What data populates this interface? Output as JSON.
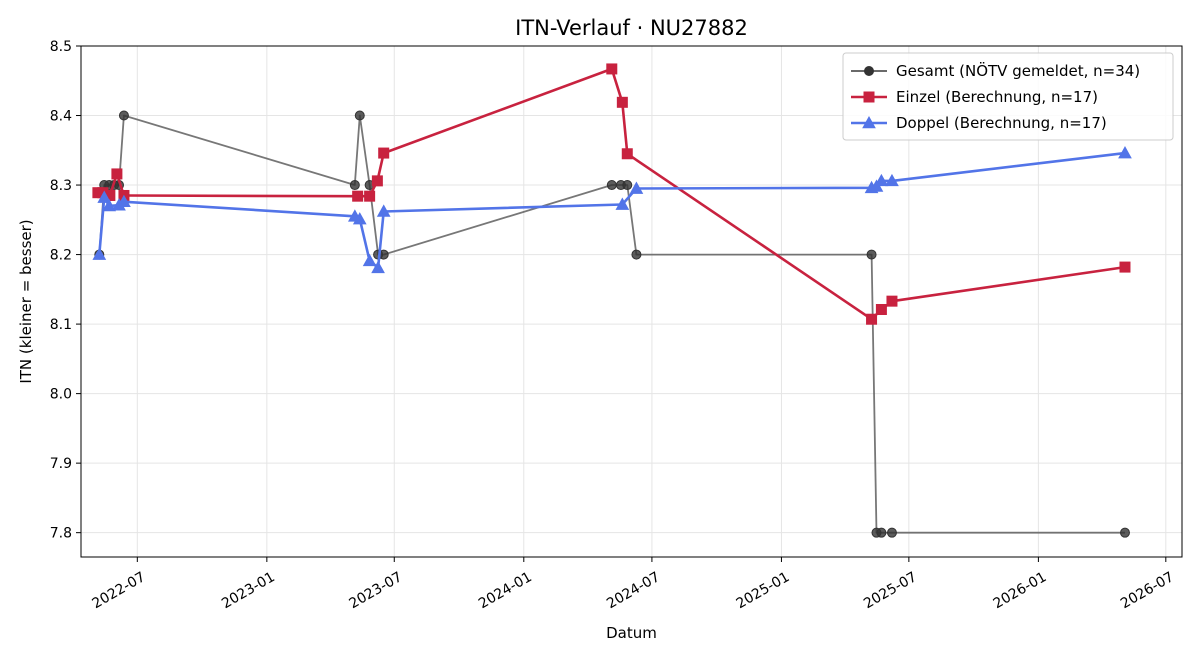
{
  "chart_data": {
    "type": "line",
    "title": "ITN-Verlauf · NU27882",
    "xlabel": "Datum",
    "ylabel": "ITN  (kleiner = besser)",
    "x_ticks": [
      "2022-07",
      "2023-01",
      "2023-07",
      "2024-01",
      "2024-07",
      "2025-01",
      "2025-07",
      "2026-01",
      "2026-07"
    ],
    "y_ticks": [
      7.8,
      7.9,
      8.0,
      8.1,
      8.2,
      8.3,
      8.4,
      8.5
    ],
    "xlim": [
      "2022-04-12",
      "2026-07-24"
    ],
    "ylim": [
      7.765,
      8.5
    ],
    "grid": true,
    "legend_position": "top-right",
    "series": [
      {
        "name": "Gesamt (NÖTV gemeldet, n=34)",
        "color": "#555555",
        "marker": "circle",
        "points": [
          [
            "2022-05-08",
            8.2
          ],
          [
            "2022-05-15",
            8.3
          ],
          [
            "2022-05-22",
            8.3
          ],
          [
            "2022-05-29",
            8.3
          ],
          [
            "2022-06-05",
            8.3
          ],
          [
            "2022-06-12",
            8.4
          ],
          [
            "2023-05-06",
            8.3
          ],
          [
            "2023-05-13",
            8.4
          ],
          [
            "2023-05-27",
            8.3
          ],
          [
            "2023-06-08",
            8.2
          ],
          [
            "2023-06-16",
            8.2
          ],
          [
            "2024-05-05",
            8.3
          ],
          [
            "2024-05-18",
            8.3
          ],
          [
            "2024-05-27",
            8.3
          ],
          [
            "2024-06-09",
            8.2
          ],
          [
            "2025-05-09",
            8.2
          ],
          [
            "2025-05-16",
            7.8
          ],
          [
            "2025-05-23",
            7.8
          ],
          [
            "2025-06-07",
            7.8
          ],
          [
            "2026-05-04",
            7.8
          ]
        ]
      },
      {
        "name": "Einzel (Berechnung, n=17)",
        "color": "#c8223f",
        "marker": "square",
        "points": [
          [
            "2022-05-06",
            8.289
          ],
          [
            "2022-05-13",
            8.289
          ],
          [
            "2022-05-23",
            8.285
          ],
          [
            "2022-06-02",
            8.316
          ],
          [
            "2022-06-12",
            8.285
          ],
          [
            "2023-05-10",
            8.284
          ],
          [
            "2023-05-27",
            8.284
          ],
          [
            "2023-06-07",
            8.306
          ],
          [
            "2023-06-16",
            8.346
          ],
          [
            "2024-05-05",
            8.467
          ],
          [
            "2024-05-20",
            8.419
          ],
          [
            "2024-05-27",
            8.345
          ],
          [
            "2025-05-09",
            8.107
          ],
          [
            "2025-05-23",
            8.121
          ],
          [
            "2025-06-07",
            8.133
          ],
          [
            "2026-05-04",
            8.182
          ]
        ]
      },
      {
        "name": "Doppel (Berechnung, n=17)",
        "color": "#5274e8",
        "marker": "triangle",
        "points": [
          [
            "2022-05-08",
            8.2
          ],
          [
            "2022-05-15",
            8.282
          ],
          [
            "2022-05-22",
            8.27
          ],
          [
            "2022-06-05",
            8.271
          ],
          [
            "2022-06-12",
            8.276
          ],
          [
            "2023-05-06",
            8.255
          ],
          [
            "2023-05-13",
            8.251
          ],
          [
            "2023-05-27",
            8.191
          ],
          [
            "2023-06-08",
            8.181
          ],
          [
            "2023-06-16",
            8.262
          ],
          [
            "2024-05-20",
            8.272
          ],
          [
            "2024-06-09",
            8.295
          ],
          [
            "2025-05-09",
            8.296
          ],
          [
            "2025-05-16",
            8.298
          ],
          [
            "2025-05-23",
            8.306
          ],
          [
            "2025-06-07",
            8.306
          ],
          [
            "2026-05-04",
            8.346
          ]
        ]
      }
    ]
  }
}
